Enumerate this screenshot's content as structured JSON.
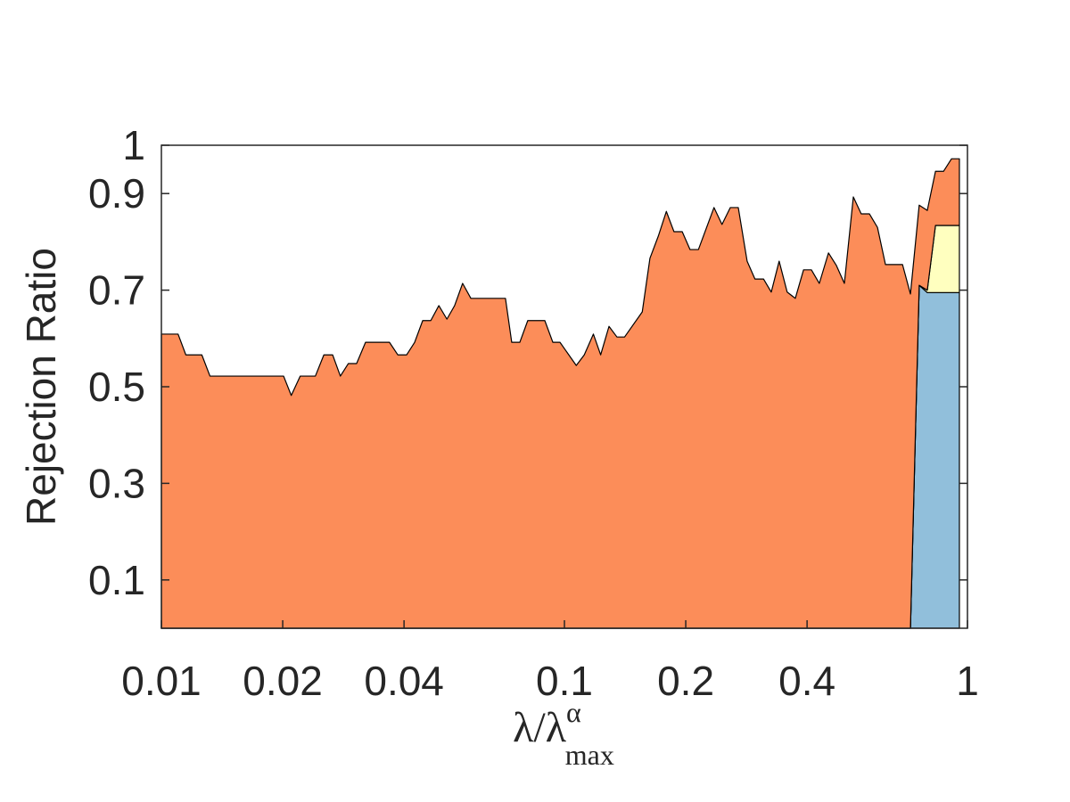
{
  "chart_data": {
    "type": "stacked-area",
    "ylabel": "Rejection Ratio",
    "xlabel": {
      "base": "λ/λ",
      "sub": "max",
      "sup": "α"
    },
    "x": [
      0.01,
      0.011,
      0.0115,
      0.0126,
      0.0132,
      0.0201,
      0.021,
      0.0221,
      0.0241,
      0.0253,
      0.0266,
      0.0278,
      0.0291,
      0.0305,
      0.0321,
      0.0368,
      0.0386,
      0.0406,
      0.0425,
      0.0445,
      0.0466,
      0.0488,
      0.0511,
      0.0534,
      0.0559,
      0.0586,
      0.0714,
      0.074,
      0.0775,
      0.0811,
      0.0894,
      0.0936,
      0.0975,
      0.107,
      0.112,
      0.118,
      0.123,
      0.129,
      0.135,
      0.141,
      0.156,
      0.163,
      0.171,
      0.179,
      0.187,
      0.196,
      0.205,
      0.215,
      0.235,
      0.246,
      0.258,
      0.27,
      0.284,
      0.297,
      0.312,
      0.326,
      0.341,
      0.357,
      0.374,
      0.392,
      0.41,
      0.429,
      0.452,
      0.473,
      0.495,
      0.521,
      0.545,
      0.571,
      0.598,
      0.626,
      0.69,
      0.722,
      0.759,
      0.795,
      0.833,
      0.872,
      0.913,
      0.955
    ],
    "series": [
      {
        "color": "#91bfdb",
        "values": [
          0,
          0,
          0,
          0,
          0,
          0,
          0,
          0,
          0,
          0,
          0,
          0,
          0,
          0,
          0,
          0,
          0,
          0,
          0,
          0,
          0,
          0,
          0,
          0,
          0,
          0,
          0,
          0,
          0,
          0,
          0,
          0,
          0,
          0,
          0,
          0,
          0,
          0,
          0,
          0,
          0,
          0,
          0,
          0,
          0,
          0,
          0,
          0,
          0,
          0,
          0,
          0,
          0,
          0,
          0,
          0,
          0,
          0,
          0,
          0,
          0,
          0,
          0,
          0,
          0,
          0,
          0,
          0,
          0,
          0,
          0,
          0,
          0.71,
          0.695,
          0.695,
          0.695,
          0.695,
          0.695
        ]
      },
      {
        "color": "#ffffbf",
        "values": [
          0,
          0,
          0,
          0,
          0,
          0,
          0,
          0,
          0,
          0,
          0,
          0,
          0,
          0,
          0,
          0,
          0,
          0,
          0,
          0,
          0,
          0,
          0,
          0,
          0,
          0,
          0,
          0,
          0,
          0,
          0,
          0,
          0,
          0,
          0,
          0,
          0,
          0,
          0,
          0,
          0,
          0,
          0,
          0,
          0,
          0,
          0,
          0,
          0,
          0,
          0,
          0,
          0,
          0,
          0,
          0,
          0,
          0,
          0,
          0,
          0,
          0,
          0,
          0,
          0,
          0,
          0,
          0,
          0,
          0,
          0,
          0,
          0,
          0.005,
          0.139,
          0.139,
          0.139,
          0.139
        ]
      },
      {
        "color": "#fc8d59",
        "values": [
          0.609,
          0.609,
          0.566,
          0.566,
          0.522,
          0.522,
          0.482,
          0.522,
          0.522,
          0.566,
          0.566,
          0.522,
          0.548,
          0.548,
          0.592,
          0.592,
          0.566,
          0.566,
          0.592,
          0.637,
          0.637,
          0.668,
          0.64,
          0.668,
          0.714,
          0.683,
          0.683,
          0.592,
          0.592,
          0.637,
          0.637,
          0.592,
          0.592,
          0.544,
          0.566,
          0.609,
          0.566,
          0.625,
          0.603,
          0.603,
          0.655,
          0.766,
          0.812,
          0.863,
          0.821,
          0.821,
          0.784,
          0.784,
          0.871,
          0.836,
          0.871,
          0.871,
          0.76,
          0.723,
          0.723,
          0.696,
          0.76,
          0.696,
          0.683,
          0.742,
          0.742,
          0.714,
          0.777,
          0.751,
          0.714,
          0.893,
          0.858,
          0.858,
          0.83,
          0.753,
          0.753,
          0.692,
          0.166,
          0.165,
          0.112,
          0.112,
          0.138,
          0.138
        ]
      }
    ],
    "xscale": "log",
    "xlim": [
      0.01,
      1
    ],
    "xticks": [
      0.01,
      0.02,
      0.04,
      0.1,
      0.2,
      0.4,
      1
    ],
    "ylim": [
      0,
      1
    ],
    "yticks": [
      0.1,
      0.3,
      0.5,
      0.7,
      0.9,
      1
    ]
  }
}
